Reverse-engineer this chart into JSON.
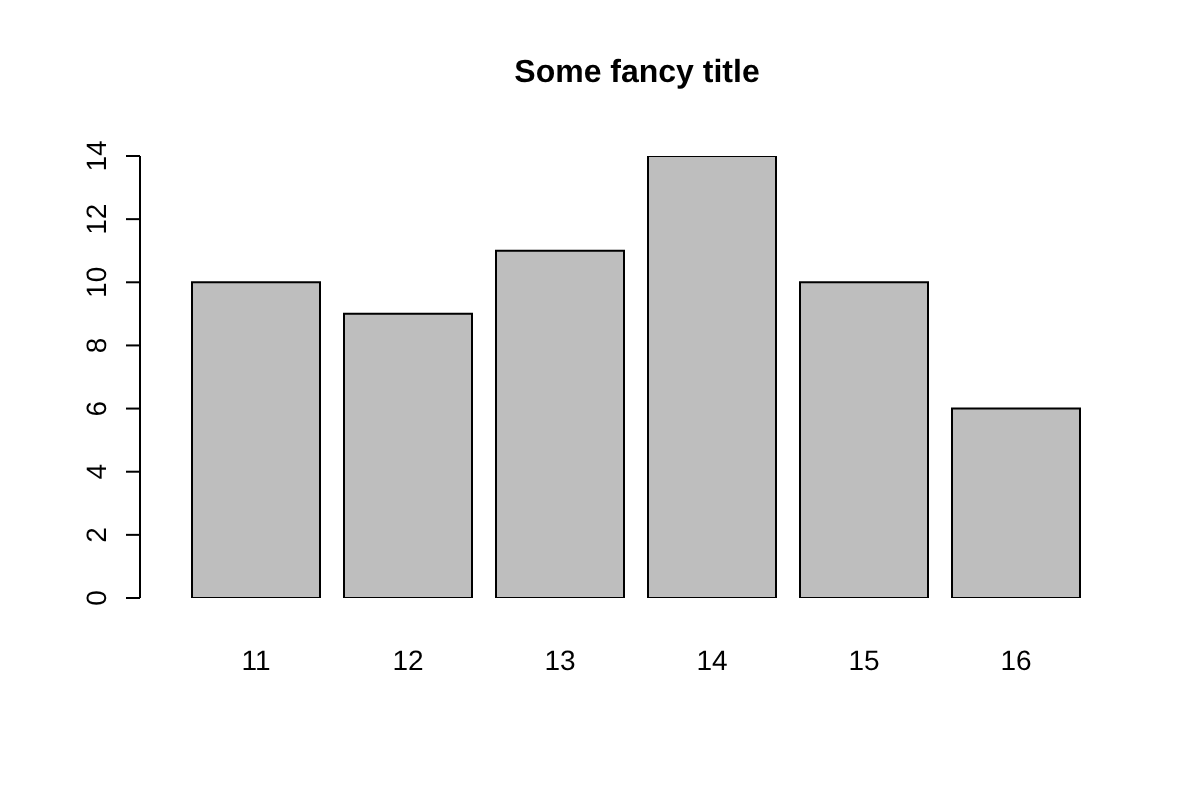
{
  "chart_data": {
    "type": "bar",
    "title": "Some fancy title",
    "categories": [
      "11",
      "12",
      "13",
      "14",
      "15",
      "16"
    ],
    "values": [
      10,
      9,
      11,
      14,
      10,
      6
    ],
    "color": "#bebebe",
    "ylim": [
      0,
      14
    ],
    "yticks": [
      0,
      2,
      4,
      6,
      8,
      10,
      12,
      14
    ]
  }
}
